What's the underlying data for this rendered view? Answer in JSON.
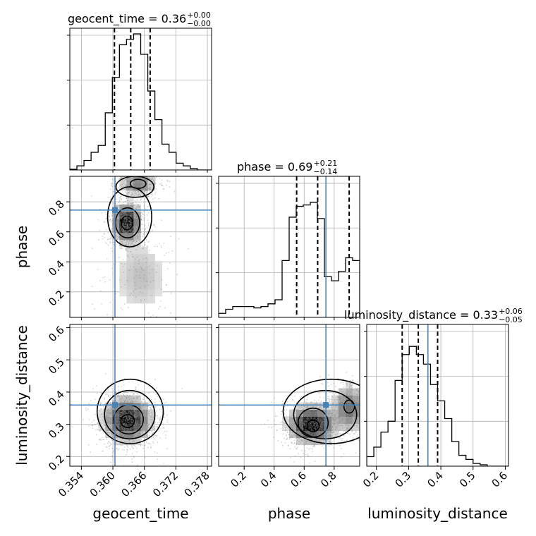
{
  "chart_data": {
    "type": "corner",
    "parameters": [
      "geocent_time",
      "phase",
      "luminosity_distance"
    ],
    "truths": {
      "geocent_time": 0.3604,
      "phase": 0.745,
      "luminosity_distance": 0.36
    },
    "colors": {
      "truth": "#4682b4",
      "hist": "#000000",
      "grid": "#b0b0b0",
      "scatter": "#888888"
    },
    "titles": [
      {
        "param": "geocent_time",
        "text": "geocent_time = 0.36",
        "sup": "+0.00",
        "sub": "−0.00"
      },
      {
        "param": "phase",
        "text": "phase = 0.69",
        "sup": "+0.21",
        "sub": "−0.14"
      },
      {
        "param": "luminosity_distance",
        "text": "luminosity_distance = 0.33",
        "sup": "+0.06",
        "sub": "−0.05"
      }
    ],
    "axes": {
      "geocent_time": {
        "range": [
          0.3518,
          0.3788
        ],
        "ticks": [
          "0.354",
          "0.360",
          "0.366",
          "0.372",
          "0.378"
        ],
        "tick_values": [
          0.354,
          0.36,
          0.366,
          0.372,
          0.378
        ]
      },
      "phase": {
        "range": [
          0.03,
          0.97
        ],
        "ticks": [
          "0.2",
          "0.4",
          "0.6",
          "0.8"
        ],
        "tick_values": [
          0.2,
          0.4,
          0.6,
          0.8
        ]
      },
      "luminosity_distance": {
        "range": [
          0.17,
          0.61
        ],
        "ticks": [
          "0.2",
          "0.3",
          "0.4",
          "0.5",
          "0.6"
        ],
        "tick_values": [
          0.2,
          0.3,
          0.4,
          0.5,
          0.6
        ]
      }
    },
    "hist_1d": {
      "geocent_time": {
        "bin_edges": [
          0.3518,
          0.35315,
          0.3545,
          0.35585,
          0.3572,
          0.35855,
          0.3599,
          0.36125,
          0.3626,
          0.36395,
          0.3653,
          0.36665,
          0.368,
          0.36935,
          0.3707,
          0.37205,
          0.3734,
          0.37475,
          0.3761,
          0.37745,
          0.3788
        ],
        "values": [
          0.005,
          0.03,
          0.07,
          0.13,
          0.18,
          0.42,
          0.68,
          0.92,
          0.96,
          1.0,
          0.85,
          0.58,
          0.37,
          0.19,
          0.13,
          0.05,
          0.03,
          0.01,
          0.0,
          0.0
        ],
        "quantiles": [
          0.3603,
          0.3634,
          0.3671
        ]
      },
      "phase": {
        "bin_edges": [
          0.03,
          0.077,
          0.124,
          0.171,
          0.218,
          0.265,
          0.312,
          0.359,
          0.406,
          0.453,
          0.5,
          0.547,
          0.594,
          0.641,
          0.688,
          0.735,
          0.782,
          0.829,
          0.876,
          0.923,
          0.97
        ],
        "values": [
          0.03,
          0.06,
          0.08,
          0.08,
          0.08,
          0.07,
          0.08,
          0.1,
          0.13,
          0.42,
          0.74,
          0.82,
          0.83,
          0.85,
          0.73,
          0.3,
          0.27,
          0.34,
          0.44,
          0.42
        ],
        "quantiles": [
          0.55,
          0.69,
          0.9
        ]
      },
      "luminosity_distance": {
        "bin_edges": [
          0.17,
          0.192,
          0.214,
          0.236,
          0.258,
          0.28,
          0.302,
          0.324,
          0.346,
          0.368,
          0.39,
          0.412,
          0.434,
          0.456,
          0.478,
          0.5,
          0.522,
          0.544,
          0.566,
          0.588,
          0.61
        ],
        "values": [
          0.07,
          0.14,
          0.25,
          0.33,
          0.63,
          0.82,
          0.88,
          0.82,
          0.75,
          0.6,
          0.48,
          0.35,
          0.18,
          0.08,
          0.05,
          0.02,
          0.01,
          0.0,
          0.0,
          0.0
        ],
        "quantiles": [
          0.28,
          0.33,
          0.39
        ]
      }
    },
    "hist_2d": [
      {
        "x": "geocent_time",
        "y": "phase",
        "modes": [
          {
            "x": 0.3627,
            "y": 0.66,
            "sx": 0.0014,
            "sy": 0.065,
            "w": 1.0
          },
          {
            "x": 0.3648,
            "y": 0.92,
            "sx": 0.0018,
            "sy": 0.04,
            "w": 0.45
          },
          {
            "x": 0.3653,
            "y": 0.3,
            "sx": 0.003,
            "sy": 0.15,
            "w": 0.18
          }
        ],
        "contours": [
          {
            "cx": 0.3627,
            "cy": 0.66,
            "rx": 0.0011,
            "ry": 0.045
          },
          {
            "cx": 0.3628,
            "cy": 0.66,
            "rx": 0.0023,
            "ry": 0.1
          },
          {
            "cx": 0.3632,
            "cy": 0.7,
            "rx": 0.0042,
            "ry": 0.2
          },
          {
            "cx": 0.3648,
            "cy": 0.92,
            "rx": 0.0015,
            "ry": 0.03
          },
          {
            "cx": 0.3642,
            "cy": 0.9,
            "rx": 0.0036,
            "ry": 0.07
          }
        ]
      },
      {
        "x": "geocent_time",
        "y": "luminosity_distance",
        "modes": [
          {
            "x": 0.3628,
            "y": 0.315,
            "sx": 0.0023,
            "sy": 0.035,
            "w": 1.0
          }
        ],
        "contours": [
          {
            "cx": 0.3628,
            "cy": 0.31,
            "rx": 0.0013,
            "ry": 0.02
          },
          {
            "cx": 0.363,
            "cy": 0.315,
            "rx": 0.0028,
            "ry": 0.045
          },
          {
            "cx": 0.3632,
            "cy": 0.33,
            "rx": 0.0048,
            "ry": 0.075
          },
          {
            "cx": 0.3633,
            "cy": 0.34,
            "rx": 0.0063,
            "ry": 0.1
          }
        ]
      },
      {
        "x": "phase",
        "y": "luminosity_distance",
        "modes": [
          {
            "x": 0.65,
            "y": 0.3,
            "sx": 0.08,
            "sy": 0.03,
            "w": 1.0
          },
          {
            "x": 0.9,
            "y": 0.35,
            "sx": 0.06,
            "sy": 0.04,
            "w": 0.5
          }
        ],
        "contours": [
          {
            "cx": 0.66,
            "cy": 0.295,
            "rx": 0.04,
            "ry": 0.018
          },
          {
            "cx": 0.66,
            "cy": 0.305,
            "rx": 0.1,
            "ry": 0.045
          },
          {
            "cx": 0.9,
            "cy": 0.355,
            "rx": 0.035,
            "ry": 0.02
          },
          {
            "cx": 0.74,
            "cy": 0.33,
            "rx": 0.21,
            "ry": 0.075
          },
          {
            "cx": 0.78,
            "cy": 0.34,
            "rx": 0.32,
            "ry": 0.1
          }
        ]
      }
    ]
  }
}
